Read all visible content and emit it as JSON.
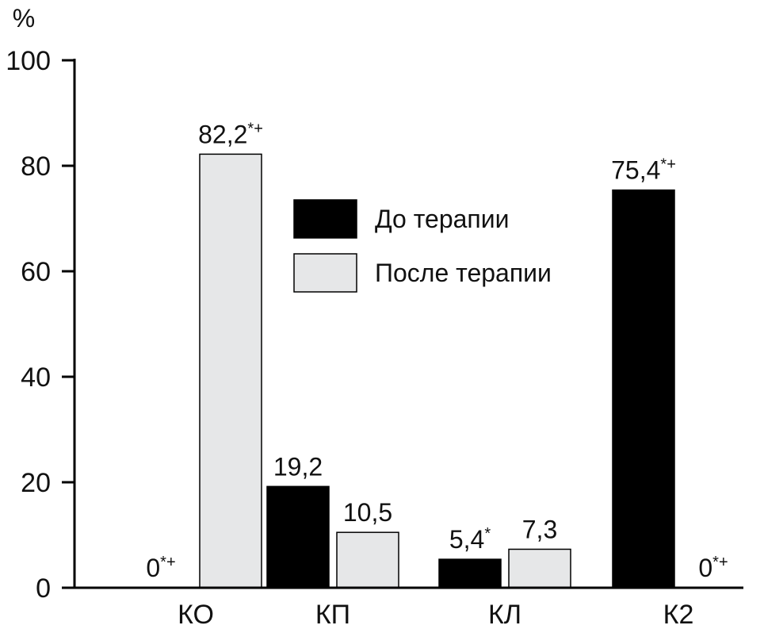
{
  "chart_data": {
    "type": "bar",
    "ylabel": "%",
    "ylim": [
      0,
      100
    ],
    "yticks": [
      0,
      20,
      40,
      60,
      80,
      100
    ],
    "categories": [
      "КО",
      "КП",
      "КЛ",
      "К2"
    ],
    "legend_position": "center",
    "series": [
      {
        "name": "До терапии",
        "color": "#000000",
        "values": [
          0,
          19.2,
          5.4,
          75.4
        ],
        "labels": [
          "0",
          "19,2",
          "5,4",
          "75,4"
        ],
        "marks": [
          "*+",
          "",
          "*",
          "*+"
        ]
      },
      {
        "name": "После терапии",
        "color": "#e6e7e8",
        "values": [
          82.2,
          10.5,
          7.3,
          0
        ],
        "labels": [
          "82,2",
          "10,5",
          "7,3",
          "0"
        ],
        "marks": [
          "*+",
          "",
          "",
          "*+"
        ]
      }
    ]
  }
}
